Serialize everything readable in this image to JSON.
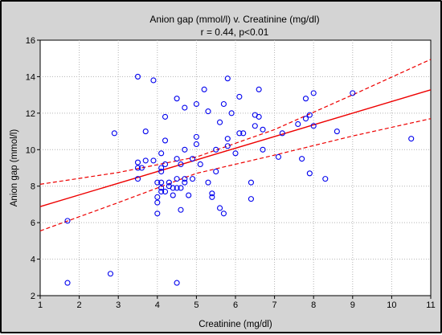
{
  "chart_data": {
    "type": "scatter",
    "title": "Anion gap (mmol/l) v. Creatinine (mg/dl)",
    "subtitle": "r = 0.44, p<0.01",
    "xlabel": "Creatinine (mg/dl)",
    "ylabel": "Anion gap (mmol/l)",
    "xlim": [
      1,
      11
    ],
    "ylim": [
      2,
      16
    ],
    "xticks": [
      1,
      2,
      3,
      4,
      5,
      6,
      7,
      8,
      9,
      10,
      11
    ],
    "yticks": [
      2,
      4,
      6,
      8,
      10,
      12,
      14,
      16
    ],
    "grid": true,
    "colors": {
      "points": "#0000ee",
      "fit": "#ee0000",
      "background": "#ffffff",
      "frame": "#d4d4d4"
    },
    "points": [
      [
        1.7,
        6.1
      ],
      [
        1.7,
        2.7
      ],
      [
        2.8,
        3.2
      ],
      [
        2.9,
        10.9
      ],
      [
        3.5,
        14.0
      ],
      [
        3.5,
        9.3
      ],
      [
        3.5,
        9.0
      ],
      [
        3.5,
        8.4
      ],
      [
        3.6,
        9.0
      ],
      [
        3.7,
        11.0
      ],
      [
        3.7,
        9.4
      ],
      [
        3.9,
        13.8
      ],
      [
        3.9,
        9.4
      ],
      [
        4.0,
        8.2
      ],
      [
        4.0,
        7.4
      ],
      [
        4.0,
        7.1
      ],
      [
        4.0,
        6.5
      ],
      [
        4.1,
        9.8
      ],
      [
        4.1,
        9.0
      ],
      [
        4.1,
        8.8
      ],
      [
        4.1,
        8.2
      ],
      [
        4.1,
        7.9
      ],
      [
        4.1,
        7.7
      ],
      [
        4.2,
        11.8
      ],
      [
        4.2,
        10.5
      ],
      [
        4.2,
        9.2
      ],
      [
        4.2,
        7.7
      ],
      [
        4.3,
        8.2
      ],
      [
        4.3,
        8.0
      ],
      [
        4.4,
        7.9
      ],
      [
        4.4,
        7.5
      ],
      [
        4.5,
        12.8
      ],
      [
        4.5,
        9.5
      ],
      [
        4.5,
        8.4
      ],
      [
        4.5,
        7.9
      ],
      [
        4.5,
        2.7
      ],
      [
        4.6,
        9.2
      ],
      [
        4.6,
        7.9
      ],
      [
        4.6,
        6.7
      ],
      [
        4.7,
        12.3
      ],
      [
        4.7,
        10.0
      ],
      [
        4.7,
        8.4
      ],
      [
        4.7,
        8.2
      ],
      [
        4.8,
        7.5
      ],
      [
        4.9,
        8.4
      ],
      [
        4.9,
        9.5
      ],
      [
        5.0,
        12.5
      ],
      [
        5.0,
        10.7
      ],
      [
        5.0,
        10.3
      ],
      [
        5.1,
        9.2
      ],
      [
        5.2,
        13.3
      ],
      [
        5.3,
        12.1
      ],
      [
        5.3,
        8.2
      ],
      [
        5.4,
        7.6
      ],
      [
        5.4,
        7.4
      ],
      [
        5.5,
        8.8
      ],
      [
        5.5,
        10.0
      ],
      [
        5.6,
        11.5
      ],
      [
        5.6,
        6.8
      ],
      [
        5.7,
        12.5
      ],
      [
        5.7,
        6.5
      ],
      [
        5.8,
        13.9
      ],
      [
        5.8,
        10.6
      ],
      [
        5.8,
        10.2
      ],
      [
        5.9,
        12.0
      ],
      [
        6.0,
        9.8
      ],
      [
        6.1,
        12.9
      ],
      [
        6.1,
        10.9
      ],
      [
        6.2,
        10.9
      ],
      [
        6.4,
        8.2
      ],
      [
        6.4,
        7.3
      ],
      [
        6.5,
        11.9
      ],
      [
        6.5,
        11.3
      ],
      [
        6.6,
        13.3
      ],
      [
        6.6,
        11.8
      ],
      [
        6.7,
        11.1
      ],
      [
        6.7,
        10.0
      ],
      [
        7.1,
        9.6
      ],
      [
        7.2,
        10.9
      ],
      [
        7.6,
        11.4
      ],
      [
        7.7,
        9.5
      ],
      [
        7.8,
        12.8
      ],
      [
        7.8,
        11.7
      ],
      [
        7.9,
        11.9
      ],
      [
        7.9,
        8.7
      ],
      [
        8.0,
        13.1
      ],
      [
        8.0,
        11.3
      ],
      [
        8.3,
        8.4
      ],
      [
        8.6,
        11.0
      ],
      [
        9.0,
        13.1
      ],
      [
        10.5,
        10.6
      ]
    ],
    "fit": {
      "slope": 0.64,
      "intercept": 6.24
    },
    "confidence_band": {
      "upper": [
        [
          1,
          8.1
        ],
        [
          3,
          8.75
        ],
        [
          5,
          9.6
        ],
        [
          7,
          11.1
        ],
        [
          9,
          13.0
        ],
        [
          11,
          14.95
        ]
      ],
      "lower": [
        [
          1,
          5.55
        ],
        [
          3,
          7.1
        ],
        [
          5,
          8.7
        ],
        [
          7,
          9.7
        ],
        [
          9,
          10.75
        ],
        [
          11,
          11.7
        ]
      ]
    }
  }
}
